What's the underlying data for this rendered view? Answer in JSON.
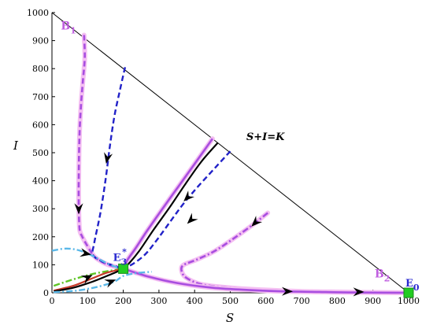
{
  "chart_data": {
    "type": "line",
    "xlabel": "S",
    "ylabel": "I",
    "xlim": [
      0,
      1000
    ],
    "ylim": [
      0,
      1000
    ],
    "xticks": [
      0,
      100,
      200,
      300,
      400,
      500,
      600,
      700,
      800,
      900,
      1000
    ],
    "yticks": [
      0,
      100,
      200,
      300,
      400,
      500,
      600,
      700,
      800,
      900,
      1000
    ],
    "grid": false,
    "colors": {
      "boundary": "#000000",
      "black_orbit": "#000000",
      "purple_orbit": "#a84ee0",
      "purple_halo": "#f4bff2",
      "blue_orbit": "#2222c8",
      "cyan_orbit": "#5bb8e8",
      "green_orbit": "#5ec425",
      "red_orbit": "#c63a2a",
      "equilibrium_marker": "#22cc22"
    },
    "series": [
      {
        "style": "boundary",
        "points": [
          [
            0,
            1000
          ],
          [
            1000,
            0
          ]
        ]
      },
      {
        "style": "purple_dashed",
        "points": [
          [
            90,
            920
          ],
          [
            92,
            840
          ],
          [
            87,
            760
          ],
          [
            82,
            680
          ],
          [
            78,
            590
          ],
          [
            76,
            500
          ],
          [
            75,
            400
          ],
          [
            75,
            320
          ],
          [
            76,
            260
          ],
          [
            78,
            222
          ],
          [
            85,
            200
          ],
          [
            98,
            170
          ],
          [
            120,
            128
          ],
          [
            150,
            104
          ],
          [
            180,
            92
          ],
          [
            200,
            86
          ]
        ]
      },
      {
        "style": "blue_dashed",
        "points": [
          [
            205,
            805
          ],
          [
            190,
            720
          ],
          [
            175,
            630
          ],
          [
            162,
            520
          ],
          [
            150,
            400
          ],
          [
            135,
            280
          ],
          [
            118,
            175
          ],
          [
            115,
            135
          ],
          [
            140,
            112
          ],
          [
            175,
            96
          ],
          [
            200,
            86
          ]
        ]
      },
      {
        "style": "purple_solid",
        "points": [
          [
            450,
            550
          ],
          [
            400,
            460
          ],
          [
            355,
            380
          ],
          [
            310,
            300
          ],
          [
            265,
            218
          ],
          [
            235,
            160
          ],
          [
            212,
            118
          ],
          [
            200,
            86
          ]
        ]
      },
      {
        "style": "black_solid",
        "points": [
          [
            465,
            535
          ],
          [
            420,
            470
          ],
          [
            375,
            390
          ],
          [
            330,
            305
          ],
          [
            285,
            225
          ],
          [
            245,
            150
          ],
          [
            218,
            108
          ],
          [
            200,
            86
          ]
        ]
      },
      {
        "style": "blue_dashed",
        "points": [
          [
            500,
            505
          ],
          [
            458,
            447
          ],
          [
            410,
            380
          ],
          [
            370,
            320
          ],
          [
            335,
            260
          ],
          [
            298,
            195
          ],
          [
            262,
            138
          ],
          [
            228,
            104
          ],
          [
            200,
            86
          ]
        ]
      },
      {
        "style": "purple_dashdot",
        "points": [
          [
            605,
            285
          ],
          [
            560,
            240
          ],
          [
            505,
            190
          ],
          [
            455,
            148
          ],
          [
            405,
            118
          ],
          [
            370,
            100
          ],
          [
            363,
            82
          ],
          [
            375,
            55
          ],
          [
            420,
            30
          ],
          [
            500,
            18
          ],
          [
            600,
            10
          ],
          [
            700,
            5
          ],
          [
            800,
            3
          ],
          [
            920,
            1
          ],
          [
            1000,
            0
          ]
        ]
      },
      {
        "style": "cyan_dashdot",
        "points": [
          [
            0,
            150
          ],
          [
            40,
            158
          ],
          [
            80,
            150
          ],
          [
            120,
            128
          ],
          [
            160,
            102
          ],
          [
            190,
            88
          ],
          [
            200,
            86
          ]
        ]
      },
      {
        "style": "purple_solid",
        "points": [
          [
            200,
            86
          ],
          [
            270,
            58
          ],
          [
            350,
            35
          ],
          [
            450,
            18
          ],
          [
            550,
            10
          ],
          [
            650,
            5
          ],
          [
            750,
            3
          ],
          [
            850,
            1
          ],
          [
            1000,
            0
          ]
        ]
      },
      {
        "style": "green_dashdot",
        "points": [
          [
            5,
            25
          ],
          [
            60,
            48
          ],
          [
            110,
            66
          ],
          [
            160,
            78
          ],
          [
            200,
            86
          ]
        ]
      },
      {
        "style": "red_solid",
        "points": [
          [
            5,
            8
          ],
          [
            60,
            25
          ],
          [
            110,
            50
          ],
          [
            150,
            70
          ],
          [
            180,
            80
          ],
          [
            200,
            86
          ]
        ]
      },
      {
        "style": "black_solid",
        "points": [
          [
            5,
            5
          ],
          [
            60,
            18
          ],
          [
            110,
            38
          ],
          [
            150,
            58
          ],
          [
            180,
            74
          ],
          [
            200,
            86
          ]
        ]
      },
      {
        "style": "cyan_dashdot",
        "points": [
          [
            5,
            2
          ],
          [
            70,
            8
          ],
          [
            130,
            22
          ],
          [
            175,
            40
          ],
          [
            200,
            60
          ],
          [
            235,
            70
          ],
          [
            280,
            75
          ]
        ]
      }
    ],
    "arrows": [
      {
        "at": [
          75,
          300
        ],
        "dir": [
          0,
          -1
        ]
      },
      {
        "at": [
          155,
          480
        ],
        "dir": [
          -0.2,
          -1
        ]
      },
      {
        "at": [
          380,
          340
        ],
        "dir": [
          -1,
          -1
        ]
      },
      {
        "at": [
          390,
          260
        ],
        "dir": [
          -1,
          -1
        ]
      },
      {
        "at": [
          570,
          250
        ],
        "dir": [
          -1,
          -1
        ]
      },
      {
        "at": [
          95,
          140
        ],
        "dir": [
          1,
          -0.2
        ]
      },
      {
        "at": [
          100,
          55
        ],
        "dir": [
          1,
          0.5
        ]
      },
      {
        "at": [
          165,
          40
        ],
        "dir": [
          1,
          0.4
        ]
      },
      {
        "at": [
          660,
          5
        ],
        "dir": [
          1,
          0
        ]
      },
      {
        "at": [
          860,
          3
        ],
        "dir": [
          1,
          0
        ]
      }
    ],
    "equilibria": [
      {
        "label": "E",
        "sub": "3",
        "sup": "*",
        "at": [
          200,
          86
        ]
      },
      {
        "label": "E",
        "sub": "0",
        "at": [
          1000,
          0
        ]
      }
    ],
    "annotations": [
      {
        "text": "B",
        "sub": "1",
        "at": [
          25,
          940
        ],
        "color": "#c060e0"
      },
      {
        "text": "B",
        "sub": "2",
        "at": [
          905,
          55
        ],
        "color": "#c060e0"
      },
      {
        "text": "S+I=K",
        "at": [
          545,
          545
        ],
        "color": "#000000"
      }
    ]
  }
}
